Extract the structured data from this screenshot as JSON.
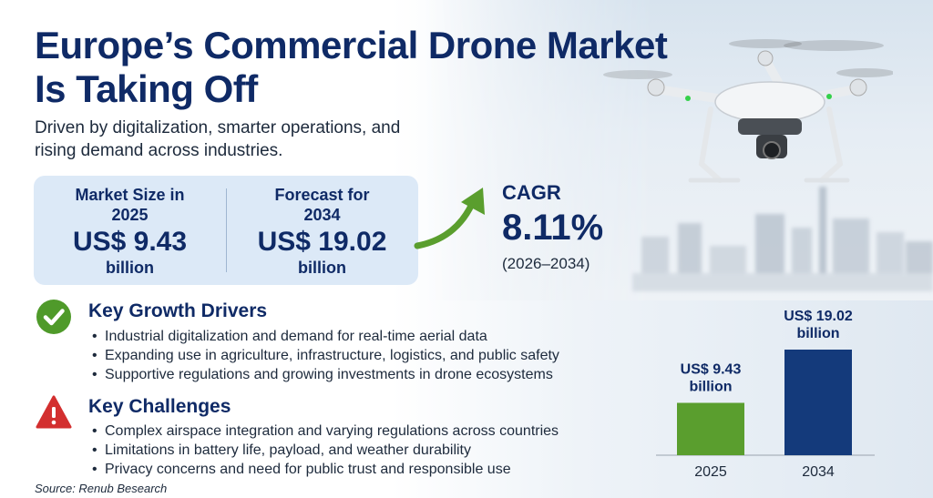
{
  "title_lines": [
    "Europe’s Commercial Drone Market",
    "Is Taking Off"
  ],
  "subtitle_lines": [
    "Driven by digitalization, smarter operations, and",
    "rising demand across industries."
  ],
  "stats": {
    "market_size": {
      "label_lines": [
        "Market Size in",
        "2025"
      ],
      "value": "US$ 9.43",
      "unit": "billion"
    },
    "forecast": {
      "label_lines": [
        "Forecast for",
        "2034"
      ],
      "value": "US$ 19.02",
      "unit": "billion"
    }
  },
  "cagr": {
    "label": "CAGR",
    "value": "8.11%",
    "period": "(2026–2034)"
  },
  "growth_drivers": {
    "heading": "Key Growth Drivers",
    "icon": "check-circle-icon",
    "items": [
      "Industrial digitalization and demand for real-time aerial data",
      "Expanding use in agriculture, infrastructure, logistics, and public safety",
      "Supportive regulations and growing investments in drone ecosystems"
    ]
  },
  "challenges": {
    "heading": "Key Challenges",
    "icon": "warning-triangle-icon",
    "items": [
      "Complex airspace integration and varying regulations across countries",
      "Limitations in battery life, payload, and weather durability",
      "Privacy concerns and need for public trust and responsible use"
    ]
  },
  "source": "Source: Renub Besearch",
  "colors": {
    "title": "#0f2a66",
    "card": "#dce9f7",
    "green": "#5a9e2e",
    "navy": "#143a7b",
    "red": "#d32f2f"
  },
  "chart_data": {
    "type": "bar",
    "categories": [
      "2025",
      "2034"
    ],
    "values": [
      9.43,
      19.02
    ],
    "data_labels": [
      [
        "US$ 9.43",
        "billion"
      ],
      [
        "US$ 19.02",
        "billion"
      ]
    ],
    "bar_colors": [
      "#5a9e2e",
      "#143a7b"
    ],
    "ylim": [
      0,
      19.02
    ],
    "grid": false,
    "title": "",
    "xlabel": "",
    "ylabel": ""
  }
}
